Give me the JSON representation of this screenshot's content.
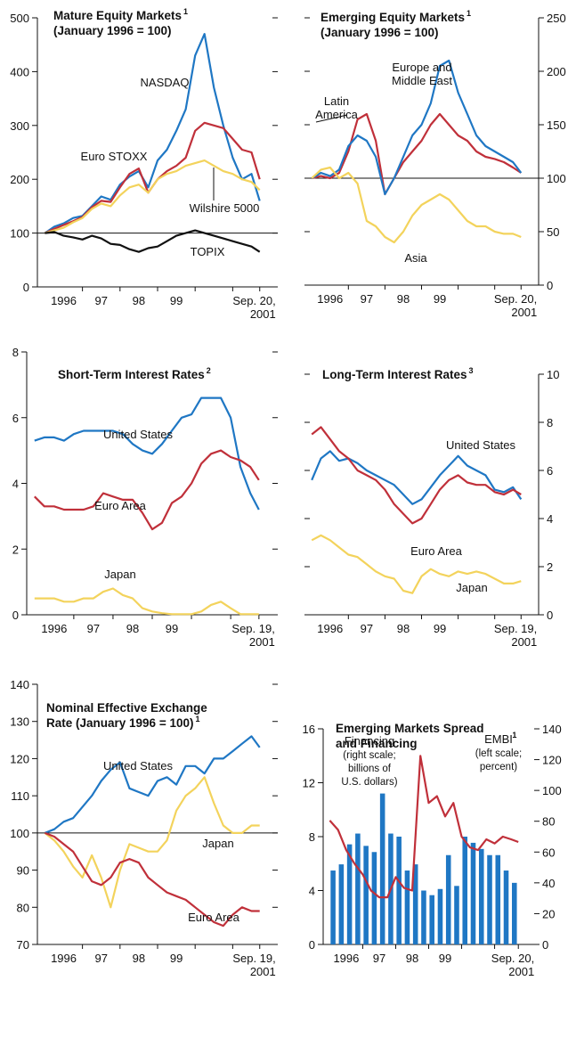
{
  "chart_data": [
    {
      "type": "line",
      "title": [
        "Mature Equity Markets"
      ],
      "title_note": "1",
      "subtitle": "(January 1996 = 100)",
      "x": [
        1996.0,
        1996.25,
        1996.5,
        1996.75,
        1997.0,
        1997.25,
        1997.5,
        1997.75,
        1998.0,
        1998.25,
        1998.5,
        1998.75,
        1999.0,
        1999.25,
        1999.5,
        1999.75,
        2000.0,
        2000.25,
        2000.5,
        2000.75,
        2001.0,
        2001.25,
        2001.5,
        2001.72
      ],
      "series": [
        {
          "name": "NASDAQ",
          "color": "#1f77c4",
          "values": [
            100,
            112,
            118,
            128,
            132,
            150,
            168,
            162,
            190,
            205,
            215,
            185,
            235,
            255,
            290,
            330,
            430,
            470,
            370,
            300,
            240,
            200,
            210,
            160
          ]
        },
        {
          "name": "Euro STOXX",
          "color": "#c0303a",
          "values": [
            100,
            108,
            115,
            122,
            130,
            148,
            160,
            158,
            185,
            210,
            220,
            175,
            200,
            215,
            225,
            240,
            290,
            305,
            300,
            295,
            275,
            255,
            250,
            200
          ]
        },
        {
          "name": "Wilshire 5000",
          "color": "#f3d35c",
          "values": [
            100,
            105,
            110,
            120,
            128,
            145,
            155,
            150,
            170,
            185,
            190,
            175,
            200,
            210,
            215,
            225,
            230,
            235,
            225,
            215,
            210,
            200,
            195,
            180
          ]
        },
        {
          "name": "TOPIX",
          "color": "#111111",
          "values": [
            100,
            102,
            95,
            92,
            88,
            95,
            90,
            80,
            78,
            70,
            65,
            72,
            75,
            85,
            95,
            100,
            105,
            100,
            95,
            90,
            85,
            80,
            75,
            65
          ]
        }
      ],
      "xlim": [
        1995.8,
        2002.2
      ],
      "xticks": [
        {
          "value": 1996.5,
          "label": "1996"
        },
        {
          "value": 1997.5,
          "label": "97"
        },
        {
          "value": 1998.5,
          "label": "98"
        },
        {
          "value": 1999.5,
          "label": "99"
        },
        {
          "value": 2001.72,
          "label": "Sep. 20,\n2001"
        }
      ],
      "xminor": [
        1997,
        1998,
        1999,
        2000,
        2001
      ],
      "ylim": [
        0,
        500
      ],
      "yticks": [
        0,
        100,
        200,
        300,
        400,
        500
      ],
      "yaxis_side": "left",
      "hline": 100
    },
    {
      "type": "line",
      "title": [
        "Emerging Equity Markets"
      ],
      "title_note": "1",
      "subtitle": "(January 1996 = 100)",
      "x": [
        1996.0,
        1996.25,
        1996.5,
        1996.75,
        1997.0,
        1997.25,
        1997.5,
        1997.75,
        1998.0,
        1998.25,
        1998.5,
        1998.75,
        1999.0,
        1999.25,
        1999.5,
        1999.75,
        2000.0,
        2000.25,
        2000.5,
        2000.75,
        2001.0,
        2001.25,
        2001.5,
        2001.72
      ],
      "series": [
        {
          "name": "Latin\nAmerica",
          "color": "#c0303a",
          "values": [
            100,
            102,
            100,
            105,
            125,
            155,
            160,
            135,
            85,
            100,
            115,
            125,
            135,
            150,
            160,
            150,
            140,
            135,
            125,
            120,
            118,
            115,
            110,
            105
          ]
        },
        {
          "name": "Europe and\nMiddle East",
          "color": "#1f77c4",
          "values": [
            100,
            105,
            102,
            108,
            130,
            140,
            135,
            120,
            85,
            100,
            120,
            140,
            150,
            170,
            205,
            210,
            180,
            160,
            140,
            130,
            125,
            120,
            115,
            105
          ]
        },
        {
          "name": "Asia",
          "color": "#f3d35c",
          "values": [
            100,
            108,
            110,
            100,
            105,
            95,
            60,
            55,
            45,
            40,
            50,
            65,
            75,
            80,
            85,
            80,
            70,
            60,
            55,
            55,
            50,
            48,
            48,
            45
          ]
        }
      ],
      "xlim": [
        1995.8,
        2002.2
      ],
      "xticks": [
        {
          "value": 1996.5,
          "label": "1996"
        },
        {
          "value": 1997.5,
          "label": "97"
        },
        {
          "value": 1998.5,
          "label": "98"
        },
        {
          "value": 1999.5,
          "label": "99"
        },
        {
          "value": 2001.72,
          "label": "Sep. 20,\n2001"
        }
      ],
      "xminor": [
        1997,
        1998,
        1999,
        2000,
        2001
      ],
      "ylim": [
        0,
        250
      ],
      "yticks": [
        0,
        50,
        100,
        150,
        200,
        250
      ],
      "yaxis_side": "right",
      "hline": 100
    },
    {
      "type": "line",
      "title": [
        "Short-Term Interest Rates"
      ],
      "title_note": "2",
      "x": [
        1996.0,
        1996.25,
        1996.5,
        1996.75,
        1997.0,
        1997.25,
        1997.5,
        1997.75,
        1998.0,
        1998.25,
        1998.5,
        1998.75,
        1999.0,
        1999.25,
        1999.5,
        1999.75,
        2000.0,
        2000.25,
        2000.5,
        2000.75,
        2001.0,
        2001.25,
        2001.5,
        2001.72
      ],
      "series": [
        {
          "name": "United States",
          "color": "#1f77c4",
          "values": [
            5.3,
            5.4,
            5.4,
            5.3,
            5.5,
            5.6,
            5.6,
            5.6,
            5.6,
            5.5,
            5.2,
            5.0,
            4.9,
            5.2,
            5.6,
            6.0,
            6.1,
            6.6,
            6.6,
            6.6,
            6.0,
            4.5,
            3.7,
            3.2
          ]
        },
        {
          "name": "Euro Area",
          "color": "#c0303a",
          "values": [
            3.6,
            3.3,
            3.3,
            3.2,
            3.2,
            3.2,
            3.3,
            3.7,
            3.6,
            3.5,
            3.5,
            3.1,
            2.6,
            2.8,
            3.4,
            3.6,
            4.0,
            4.6,
            4.9,
            5.0,
            4.8,
            4.7,
            4.5,
            4.1
          ]
        },
        {
          "name": "Japan",
          "color": "#f3d35c",
          "values": [
            0.5,
            0.5,
            0.5,
            0.4,
            0.4,
            0.5,
            0.5,
            0.7,
            0.8,
            0.6,
            0.5,
            0.2,
            0.1,
            0.05,
            0.02,
            0.02,
            0.02,
            0.1,
            0.3,
            0.4,
            0.2,
            0.02,
            0.02,
            0.02
          ]
        }
      ],
      "xlim": [
        1995.8,
        2002.2
      ],
      "xticks": [
        {
          "value": 1996.5,
          "label": "1996"
        },
        {
          "value": 1997.5,
          "label": "97"
        },
        {
          "value": 1998.5,
          "label": "98"
        },
        {
          "value": 1999.5,
          "label": "99"
        },
        {
          "value": 2001.72,
          "label": "Sep. 19,\n2001"
        }
      ],
      "xminor": [
        1997,
        1998,
        1999,
        2000,
        2001
      ],
      "ylim": [
        0,
        8
      ],
      "yticks": [
        0,
        2,
        4,
        6,
        8
      ],
      "yaxis_side": "left"
    },
    {
      "type": "line",
      "title": [
        "Long-Term Interest Rates"
      ],
      "title_note": "3",
      "x": [
        1996.0,
        1996.25,
        1996.5,
        1996.75,
        1997.0,
        1997.25,
        1997.5,
        1997.75,
        1998.0,
        1998.25,
        1998.5,
        1998.75,
        1999.0,
        1999.25,
        1999.5,
        1999.75,
        2000.0,
        2000.25,
        2000.5,
        2000.75,
        2001.0,
        2001.25,
        2001.5,
        2001.72
      ],
      "series": [
        {
          "name": "United States",
          "color": "#1f77c4",
          "values": [
            5.6,
            6.5,
            6.8,
            6.4,
            6.5,
            6.3,
            6.0,
            5.8,
            5.6,
            5.4,
            5.0,
            4.6,
            4.8,
            5.3,
            5.8,
            6.2,
            6.6,
            6.2,
            6.0,
            5.8,
            5.2,
            5.1,
            5.3,
            4.8
          ]
        },
        {
          "name": "Euro Area",
          "color": "#c0303a",
          "values": [
            7.5,
            7.8,
            7.3,
            6.8,
            6.5,
            6.0,
            5.8,
            5.6,
            5.2,
            4.6,
            4.2,
            3.8,
            4.0,
            4.6,
            5.2,
            5.6,
            5.8,
            5.5,
            5.4,
            5.4,
            5.1,
            5.0,
            5.2,
            5.0
          ]
        },
        {
          "name": "Japan",
          "color": "#f3d35c",
          "values": [
            3.1,
            3.3,
            3.1,
            2.8,
            2.5,
            2.4,
            2.1,
            1.8,
            1.6,
            1.5,
            1.0,
            0.9,
            1.6,
            1.9,
            1.7,
            1.6,
            1.8,
            1.7,
            1.8,
            1.7,
            1.5,
            1.3,
            1.3,
            1.4
          ]
        }
      ],
      "xlim": [
        1995.8,
        2002.2
      ],
      "xticks": [
        {
          "value": 1996.5,
          "label": "1996"
        },
        {
          "value": 1997.5,
          "label": "97"
        },
        {
          "value": 1998.5,
          "label": "98"
        },
        {
          "value": 1999.5,
          "label": "99"
        },
        {
          "value": 2001.72,
          "label": "Sep. 19,\n2001"
        }
      ],
      "xminor": [
        1997,
        1998,
        1999,
        2000,
        2001
      ],
      "ylim": [
        0,
        10
      ],
      "yticks": [
        0,
        2,
        4,
        6,
        8,
        10
      ],
      "yaxis_side": "right"
    },
    {
      "type": "line",
      "title": [
        "Nominal Effective Exchange",
        "Rate (January 1996 = 100)"
      ],
      "title_note": "1",
      "x": [
        1996.0,
        1996.25,
        1996.5,
        1996.75,
        1997.0,
        1997.25,
        1997.5,
        1997.75,
        1998.0,
        1998.25,
        1998.5,
        1998.75,
        1999.0,
        1999.25,
        1999.5,
        1999.75,
        2000.0,
        2000.25,
        2000.5,
        2000.75,
        2001.0,
        2001.25,
        2001.5,
        2001.72
      ],
      "series": [
        {
          "name": "United States",
          "color": "#1f77c4",
          "values": [
            100,
            101,
            103,
            104,
            107,
            110,
            114,
            117,
            119,
            112,
            111,
            110,
            114,
            115,
            113,
            118,
            118,
            116,
            120,
            120,
            122,
            124,
            126,
            123
          ]
        },
        {
          "name": "Japan",
          "color": "#f3d35c",
          "values": [
            100,
            98,
            95,
            91,
            88,
            94,
            88,
            80,
            90,
            97,
            96,
            95,
            95,
            98,
            106,
            110,
            112,
            115,
            108,
            102,
            100,
            100,
            102,
            102
          ]
        },
        {
          "name": "Euro Area",
          "color": "#c0303a",
          "values": [
            100,
            99,
            97,
            95,
            91,
            87,
            86,
            88,
            92,
            93,
            92,
            88,
            86,
            84,
            83,
            82,
            80,
            78,
            76,
            75,
            78,
            80,
            79,
            79
          ]
        }
      ],
      "xlim": [
        1995.8,
        2002.2
      ],
      "xticks": [
        {
          "value": 1996.5,
          "label": "1996"
        },
        {
          "value": 1997.5,
          "label": "97"
        },
        {
          "value": 1998.5,
          "label": "98"
        },
        {
          "value": 1999.5,
          "label": "99"
        },
        {
          "value": 2001.72,
          "label": "Sep. 19,\n2001"
        }
      ],
      "xminor": [
        1997,
        1998,
        1999,
        2000,
        2001
      ],
      "ylim": [
        70,
        140
      ],
      "yticks": [
        70,
        80,
        90,
        100,
        110,
        120,
        130,
        140
      ],
      "yaxis_side": "left",
      "hline": 100
    },
    {
      "type": "bar_line",
      "title": [
        "Emerging Markets Spread",
        "and Financing"
      ],
      "x": [
        1996.0,
        1996.25,
        1996.5,
        1996.75,
        1997.0,
        1997.25,
        1997.5,
        1997.75,
        1998.0,
        1998.25,
        1998.5,
        1998.75,
        1999.0,
        1999.25,
        1999.5,
        1999.75,
        2000.0,
        2000.25,
        2000.5,
        2000.75,
        2001.0,
        2001.25,
        2001.5,
        2001.72
      ],
      "series": [
        {
          "name": "Financing",
          "note": "(right scale;\nbillions of\nU.S. dollars)",
          "color": "#1f77c4",
          "axis": "y2",
          "x": [
            1996.1,
            1996.35,
            1996.6,
            1996.85,
            1997.1,
            1997.35,
            1997.6,
            1997.85,
            1998.1,
            1998.35,
            1998.6,
            1998.85,
            1999.1,
            1999.35,
            1999.6,
            1999.85,
            2000.1,
            2000.35,
            2000.6,
            2000.85,
            2001.1,
            2001.35,
            2001.6
          ],
          "values": [
            48,
            52,
            65,
            72,
            64,
            60,
            98,
            72,
            70,
            48,
            52,
            35,
            32,
            36,
            58,
            38,
            70,
            66,
            62,
            58,
            58,
            48,
            40
          ]
        },
        {
          "name": "EMBI",
          "name_note": "1",
          "note": "(left scale;\npercent)",
          "color": "#c0303a",
          "values": [
            9.2,
            8.5,
            7.0,
            6.0,
            5.2,
            4.0,
            3.5,
            3.5,
            5.0,
            4.2,
            4.0,
            14,
            10.5,
            11,
            9.5,
            10.5,
            8.0,
            7.2,
            7.0,
            7.8,
            7.5,
            8.0,
            7.8,
            7.6
          ]
        }
      ],
      "xlim": [
        1995.8,
        2002.2
      ],
      "xticks": [
        {
          "value": 1996.5,
          "label": "1996"
        },
        {
          "value": 1997.5,
          "label": "97"
        },
        {
          "value": 1998.5,
          "label": "98"
        },
        {
          "value": 1999.5,
          "label": "99"
        },
        {
          "value": 2001.72,
          "label": "Sep. 20,\n2001"
        }
      ],
      "xminor": [
        1997,
        1998,
        1999,
        2000,
        2001
      ],
      "ylim": [
        0,
        16
      ],
      "yticks": [
        0,
        4,
        8,
        12,
        16
      ],
      "y2lim": [
        0,
        140
      ],
      "y2ticks": [
        0,
        20,
        40,
        60,
        80,
        100,
        120,
        140
      ],
      "yaxis_side": "left"
    }
  ]
}
